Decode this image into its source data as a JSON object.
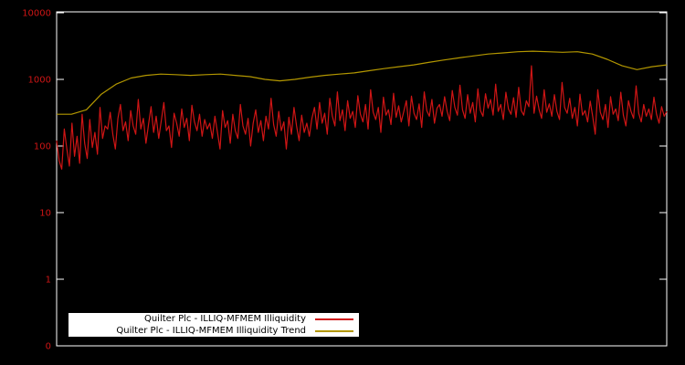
{
  "colors": {
    "background": "#000000",
    "axis": "#ffffff",
    "tick_label": "#cf1515",
    "series1": "#cf1515",
    "series2": "#b39700",
    "legend_bg": "#ffffff",
    "legend_text": "#000000"
  },
  "legend": {
    "items": [
      {
        "label": "Quilter Plc - ILLIQ-MFMEM Illiquidity",
        "color_key": "series1"
      },
      {
        "label": "Quilter Plc - ILLIQ-MFMEM Illiquidity Trend",
        "color_key": "series2"
      }
    ]
  },
  "chart_data": {
    "type": "line",
    "title": "",
    "xlabel": "",
    "ylabel": "",
    "yscale": "log",
    "grid": false,
    "legend_position": "bottom-center-inside",
    "ytick_labels": [
      "10000",
      "1000",
      "100",
      "10",
      "1",
      "0"
    ],
    "ylim_top": 10000,
    "series": [
      {
        "name": "Quilter Plc - ILLIQ-MFMEM Illiquidity",
        "color_key": "series1",
        "values": [
          120,
          60,
          45,
          180,
          90,
          50,
          220,
          70,
          140,
          55,
          300,
          110,
          65,
          250,
          95,
          160,
          75,
          380,
          130,
          200,
          180,
          320,
          150,
          90,
          260,
          420,
          170,
          230,
          120,
          340,
          200,
          150,
          500,
          180,
          260,
          110,
          210,
          390,
          160,
          280,
          130,
          240,
          450,
          170,
          200,
          95,
          310,
          220,
          140,
          360,
          190,
          260,
          120,
          410,
          230,
          170,
          300,
          140,
          250,
          180,
          220,
          130,
          280,
          160,
          90,
          340,
          190,
          240,
          110,
          300,
          170,
          130,
          420,
          200,
          150,
          260,
          100,
          220,
          350,
          160,
          240,
          120,
          280,
          180,
          520,
          210,
          140,
          330,
          170,
          230,
          90,
          270,
          150,
          380,
          200,
          120,
          290,
          160,
          220,
          140,
          260,
          380,
          180,
          450,
          220,
          310,
          150,
          520,
          280,
          200,
          650,
          240,
          350,
          170,
          480,
          260,
          330,
          190,
          570,
          300,
          230,
          420,
          180,
          700,
          320,
          250,
          380,
          160,
          540,
          290,
          350,
          210,
          620,
          270,
          400,
          230,
          330,
          480,
          200,
          560,
          310,
          250,
          430,
          190,
          650,
          340,
          280,
          500,
          220,
          370,
          420,
          280,
          550,
          330,
          240,
          680,
          380,
          290,
          820,
          350,
          260,
          590,
          310,
          450,
          230,
          720,
          340,
          280,
          610,
          370,
          500,
          290,
          850,
          330,
          420,
          250,
          640,
          360,
          300,
          530,
          270,
          760,
          340,
          290,
          480,
          390,
          1600,
          310,
          560,
          350,
          260,
          700,
          320,
          430,
          280,
          590,
          330,
          250,
          900,
          380,
          310,
          520,
          260,
          380,
          200,
          600,
          290,
          340,
          230,
          470,
          280,
          150,
          700,
          320,
          250,
          420,
          190,
          550,
          300,
          360,
          240,
          640,
          290,
          200,
          480,
          330,
          260,
          800,
          310,
          230,
          420,
          280,
          360,
          250,
          540,
          300,
          220,
          390,
          280,
          330
        ]
      },
      {
        "name": "Quilter Plc - ILLIQ-MFMEM Illiquidity Trend",
        "color_key": "series2",
        "values": [
          300,
          300,
          350,
          600,
          850,
          1050,
          1150,
          1200,
          1180,
          1150,
          1180,
          1200,
          1150,
          1100,
          1000,
          950,
          1000,
          1080,
          1150,
          1200,
          1250,
          1350,
          1450,
          1550,
          1650,
          1800,
          1950,
          2100,
          2250,
          2400,
          2500,
          2600,
          2650,
          2600,
          2550,
          2600,
          2400,
          2000,
          1600,
          1400,
          1550,
          1650
        ]
      }
    ]
  }
}
